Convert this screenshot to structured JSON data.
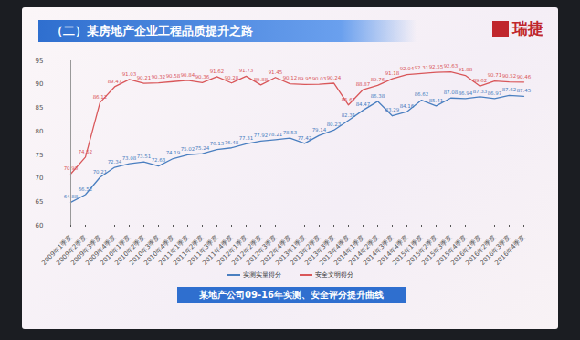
{
  "chart_data": {
    "type": "line",
    "title": "（二）某房地产企业工程品质提升之路",
    "logo": "瑞捷",
    "caption": "某地产公司09-16年实测、安全评分提升曲线",
    "categories": [
      "2009年1季度",
      "2009年2季度",
      "2009年3季度",
      "2009年4季度",
      "2010年1季度",
      "2010年2季度",
      "2010年3季度",
      "2010年4季度",
      "2011年1季度",
      "2011年2季度",
      "2011年3季度",
      "2011年4季度",
      "2012年1季度",
      "2012年2季度",
      "2012年3季度",
      "2012年4季度",
      "2013年1季度",
      "2013年2季度",
      "2013年3季度",
      "2013年4季度",
      "2014年1季度",
      "2014年2季度",
      "2014年3季度",
      "2014年4季度",
      "2015年1季度",
      "2015年2季度",
      "2015年3季度",
      "2015年4季度",
      "2016年1季度",
      "2016年2季度",
      "2016年3季度",
      "2016年4季度"
    ],
    "series": [
      {
        "name": "实测实量得分",
        "color": "#4a7fc0",
        "values": [
          64.88,
          66.52,
          70.21,
          72.34,
          73.08,
          73.51,
          72.63,
          74.19,
          75.02,
          75.24,
          76.13,
          76.48,
          77.31,
          77.92,
          78.21,
          78.53,
          77.42,
          79.14,
          80.23,
          82.31,
          84.47,
          86.38,
          83.29,
          84.16,
          86.62,
          85.41,
          87.08,
          86.94,
          87.33,
          86.97,
          87.62,
          87.45
        ]
      },
      {
        "name": "安全文明得分",
        "color": "#d9575a",
        "values": [
          70.93,
          74.52,
          86.12,
          89.47,
          91.03,
          90.21,
          90.32,
          90.58,
          90.84,
          90.36,
          91.62,
          90.28,
          91.73,
          89.88,
          91.45,
          90.12,
          89.95,
          90.03,
          90.24,
          85.61,
          88.87,
          89.76,
          91.18,
          92.04,
          92.31,
          92.55,
          92.63,
          91.88,
          89.62,
          90.71,
          90.52,
          90.46
        ]
      }
    ],
    "ylim": [
      60,
      95
    ],
    "yticks": [
      60,
      65,
      70,
      75,
      80,
      85,
      90,
      95
    ],
    "grid": false,
    "data_labels": true,
    "legend": "bottom"
  }
}
